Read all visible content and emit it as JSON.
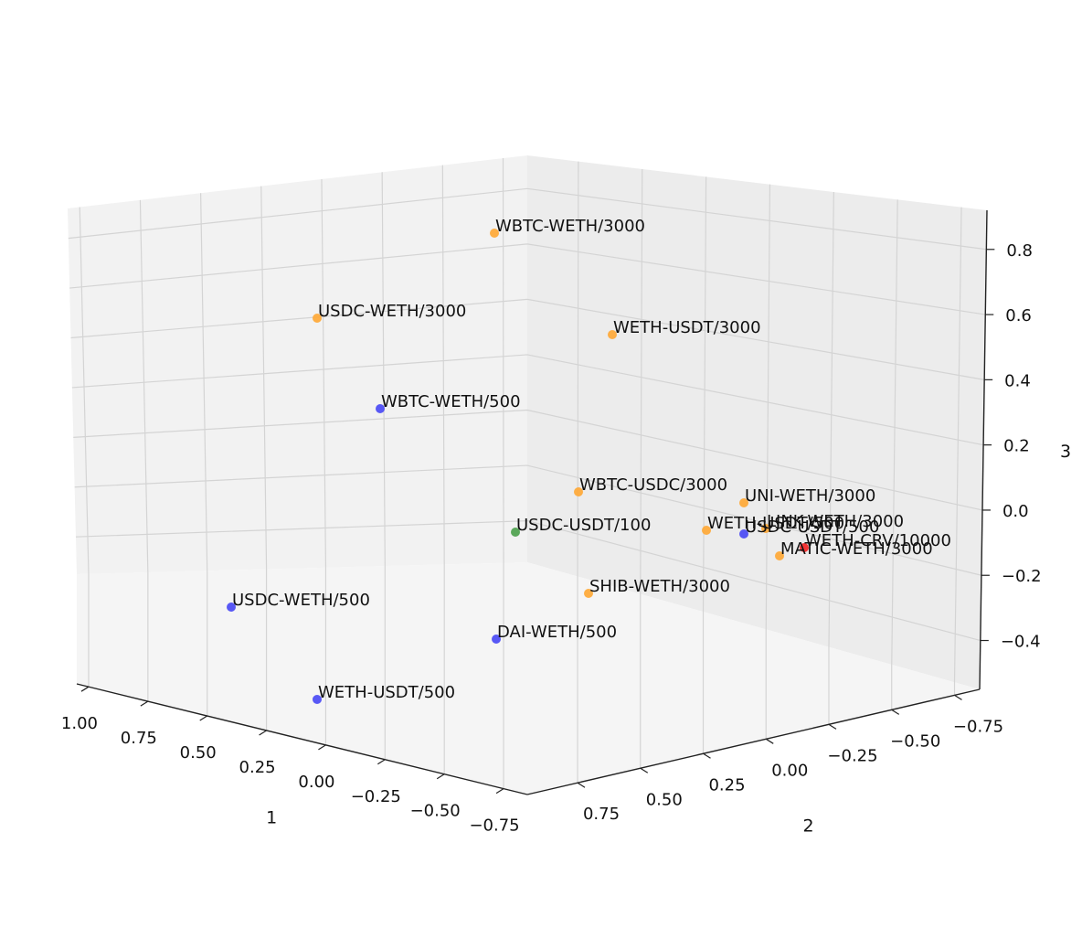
{
  "chart_data": {
    "type": "scatter",
    "projection": "3d",
    "title": "",
    "axis1": {
      "label": "1",
      "ticks": [
        1.0,
        0.75,
        0.5,
        0.25,
        0.0,
        -0.25,
        -0.5,
        -0.75
      ],
      "tick_labels": [
        "1.00",
        "0.75",
        "0.50",
        "0.25",
        "0.00",
        "−0.25",
        "−0.50",
        "−0.75"
      ]
    },
    "axis2": {
      "label": "2",
      "ticks": [
        0.75,
        0.5,
        0.25,
        0.0,
        -0.25,
        -0.5,
        -0.75
      ],
      "tick_labels": [
        "0.75",
        "0.50",
        "0.25",
        "0.00",
        "−0.25",
        "−0.50",
        "−0.75"
      ]
    },
    "axis3": {
      "label": "3",
      "ticks": [
        0.8,
        0.6,
        0.4,
        0.2,
        0.0,
        -0.2,
        -0.4
      ],
      "tick_labels": [
        "0.8",
        "0.6",
        "0.4",
        "0.2",
        "0.0",
        "−0.2",
        "−0.4"
      ]
    },
    "grid": true,
    "colors": {
      "orange": "#ffa733",
      "blue": "#4747f5",
      "green": "#4aa04a",
      "red": "#f52020",
      "pane": "#f2f2f2",
      "grid": "#d4d4d4"
    },
    "points": [
      {
        "label": "WBTC-WETH/3000",
        "color": "orange",
        "x1": -0.1,
        "x2": 0.9,
        "x3": 0.85
      },
      {
        "label": "USDC-WETH/3000",
        "color": "orange",
        "x1": 0.2,
        "x2": 1.1,
        "x3": 0.6
      },
      {
        "label": "WETH-USDT/3000",
        "color": "orange",
        "x1": -0.45,
        "x2": 0.6,
        "x3": 0.55
      },
      {
        "label": "WBTC-WETH/500",
        "color": "blue",
        "x1": 0.3,
        "x2": 0.75,
        "x3": 0.3
      },
      {
        "label": "WBTC-USDC/3000",
        "color": "orange",
        "x1": -0.45,
        "x2": 0.4,
        "x3": 0.05
      },
      {
        "label": "UNI-WETH/3000",
        "color": "orange",
        "x1": -0.7,
        "x2": 0.05,
        "x3": 0.0
      },
      {
        "label": "LINK-WETH/3000",
        "color": "orange",
        "x1": -0.75,
        "x2": 0.0,
        "x3": -0.05
      },
      {
        "label": "USDC-USDT/100",
        "color": "green",
        "x1": -0.15,
        "x2": 0.45,
        "x3": -0.1
      },
      {
        "label": "WETH-USDT/500",
        "color": "orange",
        "x1": -0.6,
        "x2": 0.15,
        "x3": -0.1
      },
      {
        "label": "USDC-USDT/500",
        "color": "blue",
        "x1": -0.68,
        "x2": 0.05,
        "x3": -0.1
      },
      {
        "label": "WETH-CRV/10000",
        "color": "red",
        "x1": -0.78,
        "x2": -0.05,
        "x3": -0.15
      },
      {
        "label": "MATIC-WETH/3000",
        "color": "orange",
        "x1": -0.75,
        "x2": 0.0,
        "x3": -0.2
      },
      {
        "label": "SHIB-WETH/3000",
        "color": "orange",
        "x1": -0.4,
        "x2": 0.3,
        "x3": -0.3
      },
      {
        "label": "USDC-WETH/500",
        "color": "blue",
        "x1": 0.5,
        "x2": 1.1,
        "x3": -0.3
      },
      {
        "label": "DAI-WETH/500",
        "color": "blue",
        "x1": -0.1,
        "x2": 0.6,
        "x3": -0.45
      },
      {
        "label": "WETH-USDT/500",
        "color": "blue",
        "x1": 0.55,
        "x2": 0.9,
        "x3": -0.6
      }
    ]
  }
}
